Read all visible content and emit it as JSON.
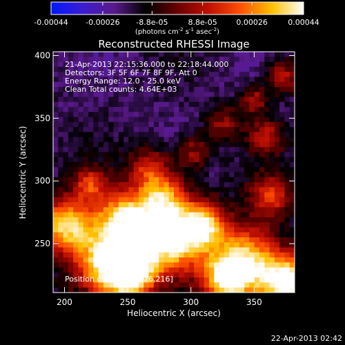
{
  "colorbar": {
    "ticks": [
      "-0.00044",
      "-0.00026",
      "-8.8e-05",
      "8.8e-05",
      "0.00026",
      "0.00044"
    ],
    "tick_values": [
      -0.00044,
      -0.00026,
      -8.8e-05,
      8.8e-05,
      0.00026,
      0.00044
    ],
    "range": [
      -0.00044,
      0.00044
    ],
    "unit_prefix": "(photons cm",
    "unit_exp1": "-2",
    "unit_mid": " s",
    "unit_exp2": "-1",
    "unit_mid2": " asec",
    "unit_exp3": "-2",
    "unit_suffix": ")",
    "colors": [
      "#0018ff",
      "#3b1dd0",
      "#5a1a8c",
      "#000000",
      "#6a0000",
      "#c01000",
      "#ff5000",
      "#ffc000",
      "#ffffff"
    ]
  },
  "chart_data": {
    "type": "heatmap",
    "title": "Reconstructed RHESSI Image",
    "xlabel": "Heliocentric X (arcsec)",
    "ylabel": "Heliocentric Y (arcsec)",
    "xlim": [
      191,
      382
    ],
    "ylim": [
      211,
      403
    ],
    "xticks": [
      200,
      250,
      300,
      350
    ],
    "yticks": [
      250,
      300,
      350,
      400
    ],
    "grid_cols": 48,
    "grid_rows": 48,
    "annotations": {
      "time_range": "21-Apr-2013 22:15:36.000 to 22:18:44.000",
      "detectors": "Detectors: 3F 5F 6F 7F 8F 9F, Att 0",
      "energy": "Energy Range: 12.0 - 25.0 keV",
      "clean": "Clean    Total counts: 4.64E+03",
      "peak": "Position of Peak = [376,216]"
    },
    "peak": [
      376,
      216
    ]
  },
  "footer": {
    "timestamp": "22-Apr-2013 02:42"
  }
}
